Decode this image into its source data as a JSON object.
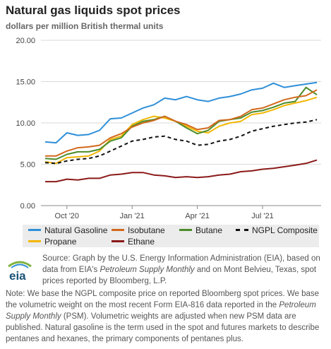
{
  "header": {
    "title": "Natural gas liquids spot prices",
    "subtitle": "dollars per million British thermal units"
  },
  "source": {
    "line1": "Source: Graph by the U.S. Energy Information Administration (EIA), based on data from EIA's ",
    "italic1": "Petroleum Supply Monthly",
    "line2": " and on Mont Belvieu, Texas, spot prices reported by Bloomberg, L.P."
  },
  "note": {
    "part1": "Note: We base the NGPL composite price on reported Bloomberg spot prices. We base the volumetric weight on the most recent Form EIA-816 data reported in the ",
    "italic1": "Petroleum Supply Monthly",
    "part2": " (PSM). Volumetric weights are adjusted when new PSM data are published. Natural gasoline is the term used in the spot and futures markets to describe pentanes and hexanes, the primary components of pentanes plus."
  },
  "logo": {
    "text": "eia",
    "icon": "eia-logo-icon"
  },
  "chart_data": {
    "type": "line",
    "title": "Natural gas liquids spot prices",
    "ylabel": "dollars per million British thermal units",
    "xlabel": "",
    "ylim": [
      0,
      20
    ],
    "yticks": [
      "0.00",
      "5.00",
      "10.00",
      "15.00",
      "20.00"
    ],
    "xticks": [
      "Oct '20",
      "Jan '21",
      "Apr '21",
      "Jul '21"
    ],
    "x": [
      "Sep 1 '20",
      "Sep 15 '20",
      "Oct 1 '20",
      "Oct 15 '20",
      "Nov 1 '20",
      "Nov 15 '20",
      "Dec 1 '20",
      "Dec 15 '20",
      "Jan 1 '21",
      "Jan 15 '21",
      "Feb 1 '21",
      "Feb 15 '21",
      "Mar 1 '21",
      "Mar 15 '21",
      "Apr 1 '21",
      "Apr 15 '21",
      "May 1 '21",
      "May 15 '21",
      "Jun 1 '21",
      "Jun 15 '21",
      "Jul 1 '21",
      "Jul 15 '21",
      "Aug 1 '21",
      "Aug 15 '21",
      "Sep 1 '21",
      "Sep 15 '21"
    ],
    "grid": true,
    "legend_position": "bottom",
    "series": [
      {
        "name": "Natural Gasoline",
        "color": "#2f8fd8",
        "dash": false,
        "values": [
          7.7,
          7.6,
          8.8,
          8.5,
          8.6,
          9.1,
          10.5,
          10.6,
          11.2,
          11.8,
          12.2,
          13.0,
          12.8,
          13.2,
          12.8,
          12.6,
          13.0,
          13.2,
          13.5,
          14.0,
          14.2,
          14.8,
          14.3,
          14.5,
          14.7,
          14.9
        ]
      },
      {
        "name": "Isobutane",
        "color": "#d2691e",
        "dash": false,
        "values": [
          6.0,
          6.0,
          6.6,
          7.0,
          7.1,
          7.3,
          8.2,
          8.7,
          9.5,
          10.0,
          10.3,
          10.8,
          10.2,
          9.8,
          9.2,
          9.4,
          10.3,
          10.4,
          10.8,
          11.6,
          11.8,
          12.3,
          12.8,
          13.1,
          13.3,
          14.0
        ]
      },
      {
        "name": "Butane",
        "color": "#4c8c2b",
        "dash": false,
        "values": [
          5.7,
          5.6,
          6.2,
          6.5,
          6.5,
          6.8,
          7.8,
          8.2,
          9.6,
          10.2,
          10.4,
          10.8,
          10.2,
          9.4,
          8.7,
          9.1,
          10.2,
          10.4,
          10.6,
          11.3,
          11.5,
          11.9,
          12.4,
          12.6,
          14.3,
          13.4
        ]
      },
      {
        "name": "NGPL Composite",
        "color": "#111111",
        "dash": true,
        "values": [
          5.2,
          5.1,
          5.4,
          5.6,
          5.7,
          6.0,
          6.6,
          7.2,
          7.8,
          8.0,
          8.3,
          8.4,
          8.0,
          7.8,
          7.3,
          7.4,
          7.8,
          8.0,
          8.4,
          9.0,
          9.3,
          9.6,
          9.8,
          10.0,
          10.1,
          10.4
        ]
      },
      {
        "name": "Propane",
        "color": "#f2b705",
        "dash": false,
        "values": [
          5.3,
          5.1,
          5.8,
          5.9,
          6.0,
          6.6,
          8.0,
          8.4,
          9.8,
          10.4,
          10.8,
          10.6,
          10.2,
          9.6,
          9.0,
          8.8,
          9.6,
          10.0,
          10.2,
          11.0,
          11.2,
          11.6,
          12.1,
          12.4,
          12.7,
          13.1
        ]
      },
      {
        "name": "Ethane",
        "color": "#8b1a1a",
        "dash": false,
        "values": [
          2.9,
          2.9,
          3.2,
          3.1,
          3.3,
          3.3,
          3.7,
          3.8,
          4.0,
          4.0,
          3.7,
          3.6,
          3.4,
          3.5,
          3.4,
          3.5,
          3.7,
          3.8,
          4.1,
          4.2,
          4.4,
          4.5,
          4.7,
          4.9,
          5.1,
          5.5
        ]
      }
    ]
  }
}
